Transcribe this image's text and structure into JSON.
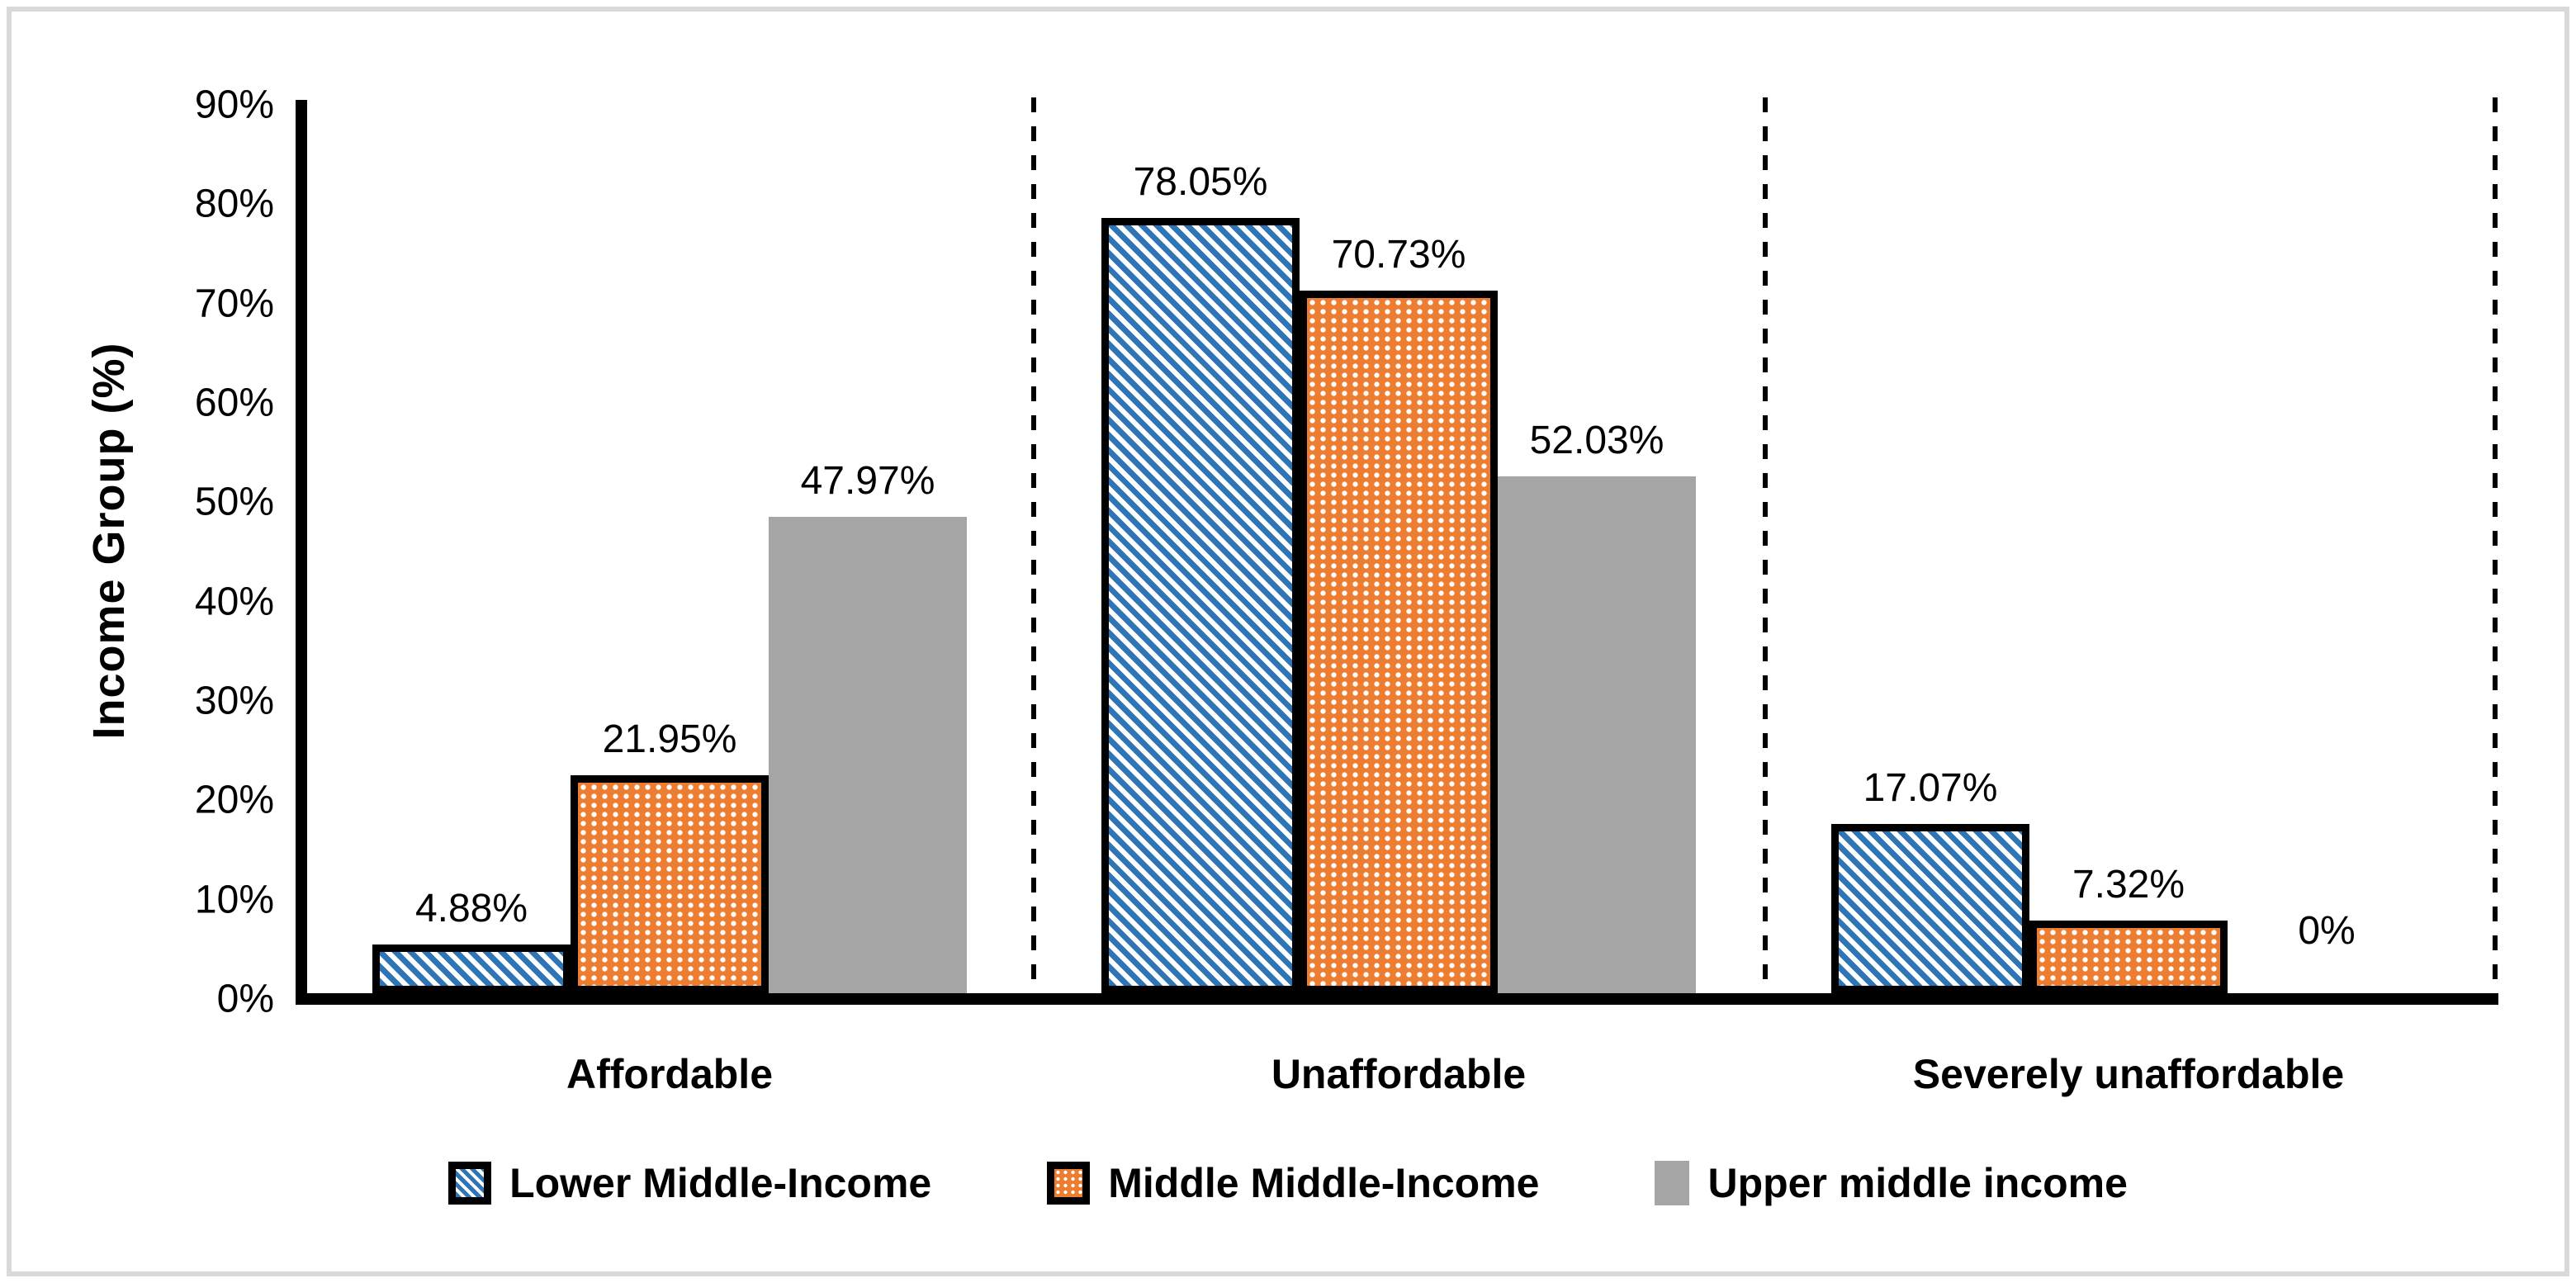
{
  "chart_data": {
    "type": "bar",
    "title": "",
    "xlabel": "",
    "ylabel": "Income Group (%)",
    "categories": [
      "Affordable",
      "Unaffordable",
      "Severely unaffordable"
    ],
    "series": [
      {
        "name": "Lower Middle-Income",
        "pattern": "diagonal-stripes",
        "color": "#2e75b6",
        "values": [
          4.88,
          78.05,
          17.07
        ],
        "labels": [
          "4.88%",
          "78.05%",
          "17.07%"
        ]
      },
      {
        "name": "Middle Middle-Income",
        "pattern": "dotted-grid",
        "color": "#ed7d31",
        "values": [
          21.95,
          70.73,
          7.32
        ],
        "labels": [
          "21.95%",
          "70.73%",
          "7.32%"
        ]
      },
      {
        "name": "Upper middle income",
        "pattern": "solid",
        "color": "#a5a5a5",
        "values": [
          47.97,
          52.03,
          0
        ],
        "labels": [
          "47.97%",
          "52.03%",
          "0%"
        ]
      }
    ],
    "y_axis": {
      "min": 0,
      "max": 90,
      "step": 10,
      "ticks": [
        "0%",
        "10%",
        "20%",
        "30%",
        "40%",
        "50%",
        "60%",
        "70%",
        "80%",
        "90%"
      ]
    },
    "grid": "off",
    "legend_position": "bottom",
    "annotations": {
      "separators": "dashed vertical lines at category boundaries and right edge"
    },
    "colors": {
      "axis": "#000000",
      "text": "#000000",
      "frame_border": "#d9d9d9",
      "background": "#ffffff"
    }
  }
}
